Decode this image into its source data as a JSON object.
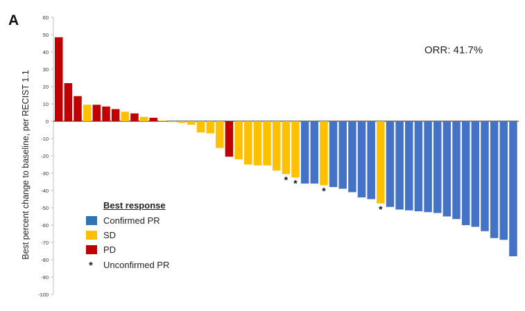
{
  "panel_label": "A",
  "annotation": "ORR: 41.7%",
  "colors": {
    "PD": "#c00000",
    "SD": "#ffc000",
    "PR": "#4472c4",
    "legend_PR": "#2e75b6"
  },
  "legend": {
    "title": "Best response",
    "items": [
      {
        "label": "Confirmed PR",
        "category": "PR"
      },
      {
        "label": "SD",
        "category": "SD"
      },
      {
        "label": "PD",
        "category": "PD"
      },
      {
        "label": "Unconfirmed PR",
        "symbol": "*"
      }
    ]
  },
  "chart_data": {
    "type": "bar",
    "ylabel": "Best percent change to baseline, per RECIST 1.1",
    "ylim": [
      -100,
      60
    ],
    "yticks": [
      60,
      50,
      40,
      30,
      20,
      10,
      0,
      -10,
      -20,
      -30,
      -40,
      -50,
      -60,
      -70,
      -80,
      -90,
      -100
    ],
    "grid": false,
    "legend_position": "bottom-left",
    "bars": [
      {
        "value": 48.5,
        "response": "PD"
      },
      {
        "value": 22,
        "response": "PD"
      },
      {
        "value": 14.5,
        "response": "PD"
      },
      {
        "value": 9.5,
        "response": "SD"
      },
      {
        "value": 9.5,
        "response": "PD"
      },
      {
        "value": 8.5,
        "response": "PD"
      },
      {
        "value": 7,
        "response": "PD"
      },
      {
        "value": 5.5,
        "response": "SD"
      },
      {
        "value": 4.5,
        "response": "PD"
      },
      {
        "value": 2.5,
        "response": "SD"
      },
      {
        "value": 2,
        "response": "PD"
      },
      {
        "value": 0,
        "response": "SD"
      },
      {
        "value": -0.5,
        "response": "SD"
      },
      {
        "value": -1,
        "response": "SD"
      },
      {
        "value": -2,
        "response": "SD"
      },
      {
        "value": -6.5,
        "response": "SD"
      },
      {
        "value": -7,
        "response": "SD"
      },
      {
        "value": -15.5,
        "response": "SD"
      },
      {
        "value": -20.5,
        "response": "PD"
      },
      {
        "value": -22,
        "response": "SD"
      },
      {
        "value": -25,
        "response": "SD"
      },
      {
        "value": -25.5,
        "response": "SD"
      },
      {
        "value": -25.5,
        "response": "SD"
      },
      {
        "value": -28.5,
        "response": "SD"
      },
      {
        "value": -30.5,
        "response": "SD",
        "unconfirmed_pr": true
      },
      {
        "value": -32.5,
        "response": "SD",
        "unconfirmed_pr": true
      },
      {
        "value": -36,
        "response": "PR"
      },
      {
        "value": -36,
        "response": "PR"
      },
      {
        "value": -37,
        "response": "SD",
        "unconfirmed_pr": true
      },
      {
        "value": -38,
        "response": "PR"
      },
      {
        "value": -39,
        "response": "PR"
      },
      {
        "value": -41,
        "response": "PR"
      },
      {
        "value": -44,
        "response": "PR"
      },
      {
        "value": -45,
        "response": "PR"
      },
      {
        "value": -47.5,
        "response": "SD",
        "unconfirmed_pr": true
      },
      {
        "value": -49.5,
        "response": "PR"
      },
      {
        "value": -51,
        "response": "PR"
      },
      {
        "value": -51.5,
        "response": "PR"
      },
      {
        "value": -52,
        "response": "PR"
      },
      {
        "value": -52.5,
        "response": "PR"
      },
      {
        "value": -53,
        "response": "PR"
      },
      {
        "value": -55,
        "response": "PR"
      },
      {
        "value": -56.5,
        "response": "PR"
      },
      {
        "value": -60,
        "response": "PR"
      },
      {
        "value": -61,
        "response": "PR"
      },
      {
        "value": -63.5,
        "response": "PR"
      },
      {
        "value": -67.5,
        "response": "PR"
      },
      {
        "value": -68.5,
        "response": "PR"
      },
      {
        "value": -78,
        "response": "PR"
      }
    ]
  }
}
